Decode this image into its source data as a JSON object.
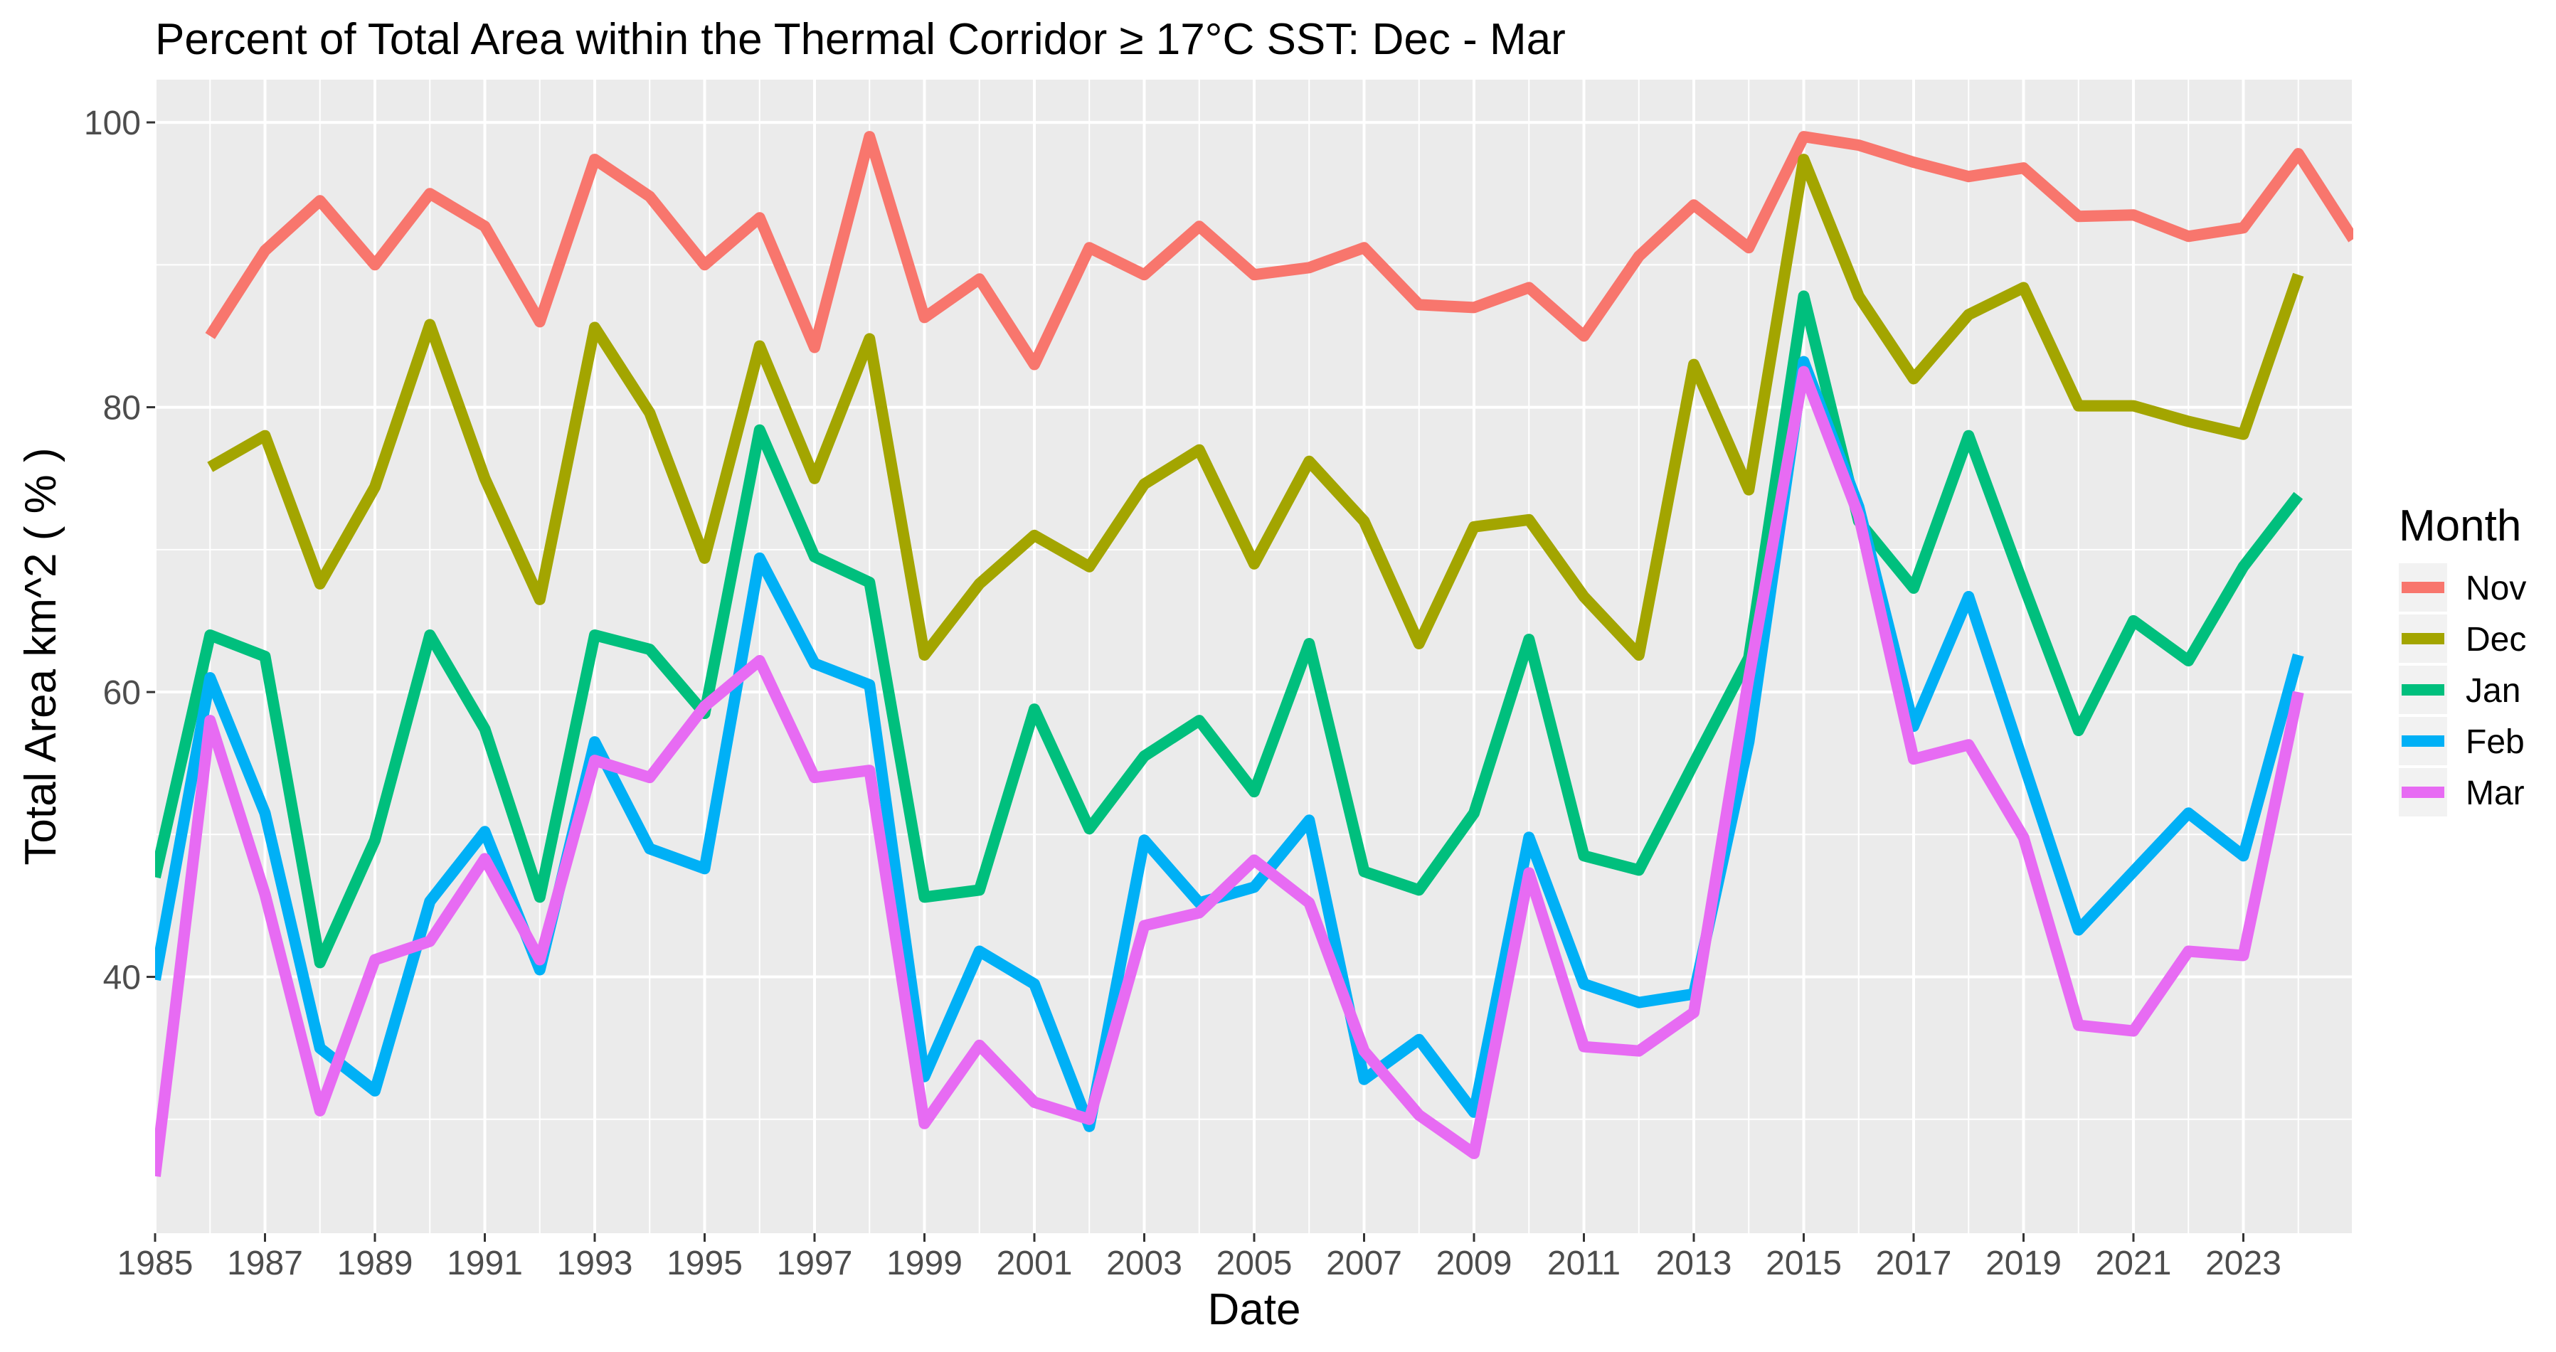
{
  "chart_data": {
    "type": "line",
    "title": "Percent of Total Area within the Thermal Corridor ≥ 17°C SST: Dec - Mar",
    "xlabel": "Date",
    "ylabel": "Total Area km^2 ( % )",
    "xlim": [
      1985,
      2025
    ],
    "ylim": [
      22,
      103
    ],
    "xticks": [
      "1985",
      "1987",
      "1989",
      "1991",
      "1993",
      "1995",
      "1997",
      "1999",
      "2001",
      "2003",
      "2005",
      "2007",
      "2009",
      "2011",
      "2013",
      "2015",
      "2017",
      "2019",
      "2021",
      "2023"
    ],
    "yticks": [
      "40",
      "60",
      "80",
      "100"
    ],
    "grid": true,
    "legend": {
      "title": "Month",
      "position": "right"
    },
    "series": [
      {
        "name": "Nov",
        "color": "#F8766D",
        "points": [
          [
            1986,
            85
          ],
          [
            1987,
            91
          ],
          [
            1988,
            94.5
          ],
          [
            1989,
            90
          ],
          [
            1990,
            95
          ],
          [
            1991,
            92.7
          ],
          [
            1992,
            86
          ],
          [
            1993,
            97.4
          ],
          [
            1994,
            94.8
          ],
          [
            1995,
            90
          ],
          [
            1996,
            93.3
          ],
          [
            1997,
            84.2
          ],
          [
            1998,
            99
          ],
          [
            1999,
            86.3
          ],
          [
            2000,
            89
          ],
          [
            2001,
            83
          ],
          [
            2002,
            91.2
          ],
          [
            2003,
            89.3
          ],
          [
            2004,
            92.7
          ],
          [
            2005,
            89.3
          ],
          [
            2006,
            89.8
          ],
          [
            2007,
            91.2
          ],
          [
            2008,
            87.2
          ],
          [
            2009,
            87
          ],
          [
            2010,
            88.4
          ],
          [
            2011,
            85
          ],
          [
            2012,
            90.6
          ],
          [
            2013,
            94.2
          ],
          [
            2014,
            91.2
          ],
          [
            2015,
            99
          ],
          [
            2016,
            98.4
          ],
          [
            2017,
            97.2
          ],
          [
            2018,
            96.2
          ],
          [
            2019,
            96.8
          ],
          [
            2020,
            93.4
          ],
          [
            2021,
            93.5
          ],
          [
            2022,
            92
          ],
          [
            2023,
            92.6
          ],
          [
            2024,
            97.8
          ],
          [
            2025,
            91.8
          ]
        ]
      },
      {
        "name": "Dec",
        "color": "#A3A500",
        "points": [
          [
            1986,
            75.8
          ],
          [
            1987,
            78
          ],
          [
            1988,
            67.6
          ],
          [
            1989,
            74.4
          ],
          [
            1990,
            85.8
          ],
          [
            1991,
            75
          ],
          [
            1992,
            66.5
          ],
          [
            1993,
            85.6
          ],
          [
            1994,
            79.6
          ],
          [
            1995,
            69.4
          ],
          [
            1996,
            84.3
          ],
          [
            1997,
            75
          ],
          [
            1998,
            84.8
          ],
          [
            1999,
            62.6
          ],
          [
            2000,
            67.6
          ],
          [
            2001,
            71
          ],
          [
            2002,
            68.8
          ],
          [
            2003,
            74.6
          ],
          [
            2004,
            77
          ],
          [
            2005,
            69
          ],
          [
            2006,
            76.2
          ],
          [
            2007,
            72
          ],
          [
            2008,
            63.4
          ],
          [
            2009,
            71.6
          ],
          [
            2010,
            72.1
          ],
          [
            2011,
            66.7
          ],
          [
            2012,
            62.6
          ],
          [
            2013,
            83
          ],
          [
            2014,
            74.2
          ],
          [
            2015,
            97.4
          ],
          [
            2016,
            87.8
          ],
          [
            2017,
            82
          ],
          [
            2018,
            86.5
          ],
          [
            2019,
            88.4
          ],
          [
            2020,
            80.1
          ],
          [
            2021,
            80.1
          ],
          [
            2022,
            79
          ],
          [
            2023,
            78.1
          ],
          [
            2024,
            89.3
          ]
        ]
      },
      {
        "name": "Jan",
        "color": "#00BF7D",
        "points": [
          [
            1985,
            47
          ],
          [
            1986,
            64
          ],
          [
            1987,
            62.5
          ],
          [
            1988,
            41
          ],
          [
            1989,
            49.6
          ],
          [
            1990,
            64
          ],
          [
            1991,
            57.4
          ],
          [
            1992,
            45.6
          ],
          [
            1993,
            64
          ],
          [
            1994,
            63
          ],
          [
            1995,
            58.5
          ],
          [
            1996,
            78.4
          ],
          [
            1997,
            69.5
          ],
          [
            1998,
            67.7
          ],
          [
            1999,
            45.6
          ],
          [
            2000,
            46.1
          ],
          [
            2001,
            58.8
          ],
          [
            2002,
            50.4
          ],
          [
            2003,
            55.5
          ],
          [
            2004,
            58
          ],
          [
            2005,
            53
          ],
          [
            2006,
            63.4
          ],
          [
            2007,
            47.4
          ],
          [
            2008,
            46.1
          ],
          [
            2009,
            51.5
          ],
          [
            2010,
            63.7
          ],
          [
            2011,
            48.5
          ],
          [
            2012,
            47.5
          ],
          [
            2013,
            55
          ],
          [
            2014,
            62.4
          ],
          [
            2015,
            87.8
          ],
          [
            2016,
            72
          ],
          [
            2017,
            67.3
          ],
          [
            2018,
            78
          ],
          [
            2019,
            67.5
          ],
          [
            2020,
            57.3
          ],
          [
            2021,
            65
          ],
          [
            2022,
            62.2
          ],
          [
            2023,
            68.8
          ],
          [
            2024,
            73.8
          ]
        ]
      },
      {
        "name": "Feb",
        "color": "#00B0F6",
        "points": [
          [
            1985,
            39.8
          ],
          [
            1986,
            61
          ],
          [
            1987,
            51.5
          ],
          [
            1988,
            35
          ],
          [
            1989,
            32
          ],
          [
            1990,
            45.3
          ],
          [
            1991,
            50.2
          ],
          [
            1992,
            40.5
          ],
          [
            1993,
            56.5
          ],
          [
            1994,
            49
          ],
          [
            1995,
            47.6
          ],
          [
            1996,
            69.4
          ],
          [
            1997,
            62
          ],
          [
            1998,
            60.5
          ],
          [
            1999,
            33
          ],
          [
            2000,
            41.8
          ],
          [
            2001,
            39.5
          ],
          [
            2002,
            29.5
          ],
          [
            2003,
            49.6
          ],
          [
            2004,
            45.2
          ],
          [
            2005,
            46.3
          ],
          [
            2006,
            51
          ],
          [
            2007,
            32.8
          ],
          [
            2008,
            35.6
          ],
          [
            2009,
            30.5
          ],
          [
            2010,
            49.8
          ],
          [
            2011,
            39.5
          ],
          [
            2012,
            38.2
          ],
          [
            2013,
            38.8
          ],
          [
            2014,
            56.5
          ],
          [
            2015,
            83.2
          ],
          [
            2016,
            73
          ],
          [
            2017,
            57.6
          ],
          [
            2018,
            66.7
          ],
          [
            2019,
            55
          ],
          [
            2020,
            43.3
          ],
          [
            2021,
            47.4
          ],
          [
            2022,
            51.5
          ],
          [
            2023,
            48.5
          ],
          [
            2024,
            62.6
          ]
        ]
      },
      {
        "name": "Mar",
        "color": "#E76BF3",
        "points": [
          [
            1985,
            26
          ],
          [
            1986,
            58
          ],
          [
            1987,
            45.8
          ],
          [
            1988,
            30.6
          ],
          [
            1989,
            41.2
          ],
          [
            1990,
            42.5
          ],
          [
            1991,
            48.3
          ],
          [
            1992,
            41.2
          ],
          [
            1993,
            55.2
          ],
          [
            1994,
            54
          ],
          [
            1995,
            59
          ],
          [
            1996,
            62.2
          ],
          [
            1997,
            54
          ],
          [
            1998,
            54.5
          ],
          [
            1999,
            29.7
          ],
          [
            2000,
            35.2
          ],
          [
            2001,
            31.2
          ],
          [
            2002,
            30
          ],
          [
            2003,
            43.6
          ],
          [
            2004,
            44.5
          ],
          [
            2005,
            48.2
          ],
          [
            2006,
            45.2
          ],
          [
            2007,
            34.8
          ],
          [
            2008,
            30.3
          ],
          [
            2009,
            27.6
          ],
          [
            2010,
            47.3
          ],
          [
            2011,
            35.1
          ],
          [
            2012,
            34.8
          ],
          [
            2013,
            37.5
          ],
          [
            2014,
            61
          ],
          [
            2015,
            82.5
          ],
          [
            2016,
            72.4
          ],
          [
            2017,
            55.3
          ],
          [
            2018,
            56.3
          ],
          [
            2019,
            49.8
          ],
          [
            2020,
            36.6
          ],
          [
            2021,
            36.2
          ],
          [
            2022,
            41.8
          ],
          [
            2023,
            41.5
          ],
          [
            2024,
            60
          ]
        ]
      }
    ]
  }
}
